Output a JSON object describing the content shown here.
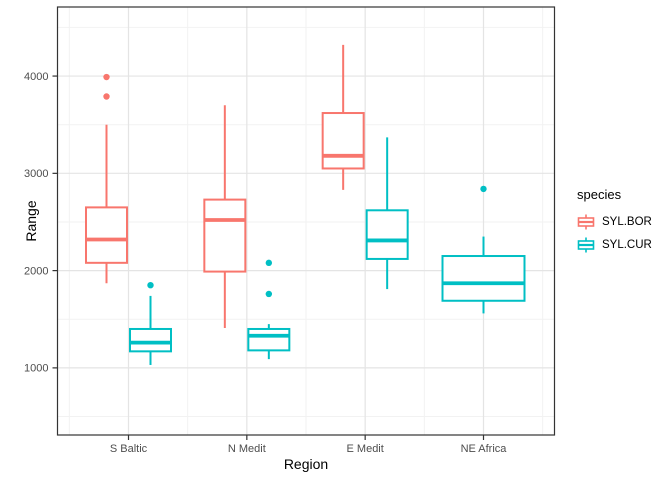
{
  "chart_data": {
    "type": "boxplot",
    "title": "",
    "xlabel": "Region",
    "ylabel": "Range",
    "legend_title": "species",
    "legend_position": "right",
    "grid": true,
    "categories": [
      "S Baltic",
      "N Medit",
      "E Medit",
      "NE Africa"
    ],
    "y_ticks": [
      1000,
      2000,
      3000,
      4000
    ],
    "y_minor_ticks": [
      500,
      1500,
      2500,
      3500,
      4500
    ],
    "ylim": [
      310,
      4710
    ],
    "series": [
      {
        "name": "SYL.BOR",
        "color": "#F8766D",
        "boxes": [
          {
            "min": 1870,
            "q1": 2080,
            "median": 2320,
            "q3": 2650,
            "max": 3500,
            "outliers": [
              3790,
              3990
            ]
          },
          {
            "min": 1410,
            "q1": 1990,
            "median": 2520,
            "q3": 2730,
            "max": 3700,
            "outliers": []
          },
          {
            "min": 2830,
            "q1": 3050,
            "median": 3180,
            "q3": 3620,
            "max": 4320,
            "outliers": []
          },
          null
        ]
      },
      {
        "name": "SYL.CUR",
        "color": "#00BFC4",
        "boxes": [
          {
            "min": 1030,
            "q1": 1170,
            "median": 1260,
            "q3": 1400,
            "max": 1740,
            "outliers": [
              1850
            ]
          },
          {
            "min": 1090,
            "q1": 1180,
            "median": 1330,
            "q3": 1400,
            "max": 1450,
            "outliers": [
              1760,
              2080
            ]
          },
          {
            "min": 1810,
            "q1": 2120,
            "median": 2310,
            "q3": 2620,
            "max": 3370,
            "outliers": []
          },
          {
            "min": 1560,
            "q1": 1690,
            "median": 1870,
            "q3": 2150,
            "max": 2350,
            "outliers": [
              2840
            ]
          }
        ]
      }
    ],
    "style_colors": {
      "grid_major": "#E4E4E4",
      "grid_minor": "#F2F2F2",
      "panel_border": "#333333",
      "tick": "#333333",
      "tick_label": "#4D4D4D",
      "box_fill": "#FFFFFF"
    }
  }
}
